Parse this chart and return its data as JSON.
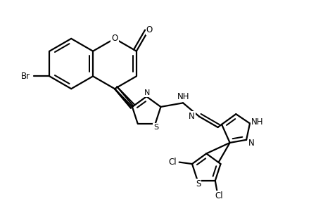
{
  "background_color": "#ffffff",
  "line_color": "#000000",
  "line_width": 1.6,
  "figsize": [
    4.6,
    3.0
  ],
  "dpi": 100,
  "xlim": [
    0.0,
    9.2
  ],
  "ylim": [
    0.0,
    6.0
  ]
}
